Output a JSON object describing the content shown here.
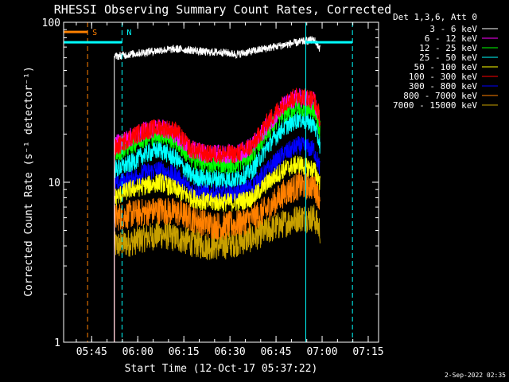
{
  "chart_data": {
    "type": "line",
    "title": "RHESSI Observing Summary Count Rates, Corrected",
    "xlabel": "Start Time (12-Oct-17 05:37:22)",
    "ylabel": "Corrected Count Rate (s⁻¹ detector⁻¹)",
    "yscale": "log",
    "ylim": [
      1,
      100
    ],
    "xlim_minutes": [
      -1.5,
      101
    ],
    "x_tick_labels": [
      "05:45",
      "06:00",
      "06:15",
      "06:30",
      "06:45",
      "07:00",
      "07:15"
    ],
    "x_tick_minutes": [
      7.63,
      22.63,
      37.63,
      52.63,
      67.63,
      82.63,
      97.63
    ],
    "y_tick_labels": [
      "1",
      "10",
      "100"
    ],
    "y_tick_values": [
      1,
      10,
      100
    ],
    "legend_title": "Det 1,3,6, Att 0",
    "legend_position": "right",
    "x_minutes": [
      10,
      15,
      20,
      25,
      30,
      35,
      40,
      45,
      50,
      55,
      60,
      65,
      70,
      75,
      80,
      82
    ],
    "series": [
      {
        "name": "3 - 6 keV",
        "color": "#ffffff",
        "values": [
          null,
          61,
          63,
          65,
          67,
          68,
          67,
          65,
          65,
          63,
          66,
          69,
          72,
          75,
          78,
          68
        ]
      },
      {
        "name": "6 - 12 keV",
        "color": "#ff00ff",
        "values": [
          null,
          17,
          19,
          21,
          22,
          20,
          16,
          15,
          15,
          15,
          17,
          23,
          30,
          34,
          32,
          24
        ]
      },
      {
        "name": "12 - 25 keV",
        "color": "#00ff00",
        "values": [
          null,
          15,
          17,
          19,
          20,
          18,
          14,
          13,
          13,
          13,
          15,
          21,
          27,
          30,
          28,
          21
        ]
      },
      {
        "name": "25 - 50 keV",
        "color": "#00ffff",
        "values": [
          null,
          12,
          13,
          15,
          16,
          14,
          11,
          10.5,
          10.5,
          10.5,
          12,
          17,
          22,
          25,
          23,
          17
        ]
      },
      {
        "name": "50 - 100 keV",
        "color": "#ffff00",
        "values": [
          null,
          8,
          9,
          9.5,
          10,
          9,
          8,
          7.5,
          7.5,
          7.5,
          8,
          10,
          12,
          13,
          12,
          10
        ]
      },
      {
        "name": "100 - 300 keV",
        "color": "#ff0000",
        "values": [
          null,
          16,
          19,
          21,
          22,
          21,
          16,
          15,
          15,
          15,
          17,
          24,
          31,
          35,
          33,
          25
        ]
      },
      {
        "name": "300 - 800 keV",
        "color": "#0000ff",
        "values": [
          null,
          9.5,
          10.5,
          11.5,
          12,
          11,
          9,
          8.5,
          8.5,
          8.5,
          9.5,
          12,
          15,
          17,
          16,
          12
        ]
      },
      {
        "name": "800 - 7000 keV",
        "color": "#ff8000",
        "values": [
          null,
          6,
          6.3,
          6.5,
          6.7,
          6.5,
          6,
          5.5,
          5.3,
          5.5,
          6,
          6.8,
          8.5,
          9.5,
          9.5,
          8
        ]
      },
      {
        "name": "7000 - 15000 keV",
        "color": "#c8a000",
        "values": [
          null,
          4,
          4.2,
          4.5,
          4.7,
          4.5,
          4.2,
          4,
          4,
          4.2,
          4.5,
          5,
          5.5,
          6,
          6,
          5
        ]
      }
    ],
    "annotations": [
      {
        "label": "S",
        "color": "#ff8000",
        "x_minutes": 6.3,
        "style": "dashed-vertical"
      },
      {
        "label": "N",
        "color": "#00ffff",
        "x_minutes": 17.5,
        "style": "dashed-vertical"
      },
      {
        "label": "",
        "color": "#00ffff",
        "x_minutes": 77.3,
        "style": "solid-vertical"
      },
      {
        "label": "",
        "color": "#00ffff",
        "x_minutes": 92.5,
        "style": "dashed-vertical"
      }
    ],
    "bars": [
      {
        "color": "#00ffff",
        "level": 75,
        "segments": [
          [
            -1.5,
            17.5
          ],
          [
            77.3,
            92.5
          ]
        ]
      },
      {
        "color": "#ff8000",
        "level": 87,
        "segments": [
          [
            -1.5,
            6.3
          ]
        ]
      }
    ]
  },
  "footer_text": "2-Sep-2022 02:35"
}
